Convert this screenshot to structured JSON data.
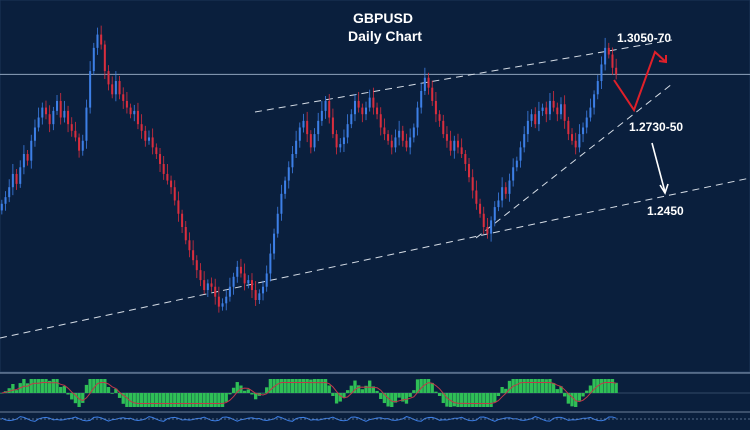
{
  "chart_data": {
    "type": "candlestick",
    "title": "GBPUSD",
    "subtitle": "Daily Chart",
    "y_range": [
      1.23,
      1.315
    ],
    "colors": {
      "background": "#0a1f3d",
      "bull_candle": "#3d7fe6",
      "bear_candle": "#d92e3e",
      "trendline": "#d6dde6",
      "forecast_up": "#e0202a",
      "forecast_down": "#ffffff",
      "histogram": "#2fbf56"
    },
    "annotations": [
      {
        "id": "resistance",
        "text": "1.3050-70",
        "price": 1.306
      },
      {
        "id": "support-1",
        "text": "1.2730-50",
        "price": 1.274
      },
      {
        "id": "support-2",
        "text": "1.2450",
        "price": 1.245
      }
    ],
    "horizontal_level": 1.298,
    "close_series": [
      1.259,
      1.261,
      1.264,
      1.268,
      1.265,
      1.27,
      1.274,
      1.272,
      1.278,
      1.282,
      1.285,
      1.288,
      1.286,
      1.283,
      1.287,
      1.29,
      1.285,
      1.287,
      1.283,
      1.281,
      1.279,
      1.275,
      1.278,
      1.288,
      1.299,
      1.306,
      1.31,
      1.307,
      1.299,
      1.295,
      1.292,
      1.296,
      1.292,
      1.29,
      1.288,
      1.286,
      1.287,
      1.283,
      1.281,
      1.278,
      1.279,
      1.276,
      1.274,
      1.271,
      1.268,
      1.266,
      1.264,
      1.26,
      1.256,
      1.252,
      1.248,
      1.245,
      1.242,
      1.239,
      1.236,
      1.233,
      1.235,
      1.234,
      1.231,
      1.228,
      1.229,
      1.231,
      1.234,
      1.237,
      1.24,
      1.238,
      1.235,
      1.236,
      1.233,
      1.23,
      1.232,
      1.234,
      1.238,
      1.244,
      1.25,
      1.256,
      1.262,
      1.266,
      1.27,
      1.274,
      1.278,
      1.282,
      1.284,
      1.28,
      1.276,
      1.28,
      1.284,
      1.287,
      1.29,
      1.285,
      1.28,
      1.276,
      1.277,
      1.279,
      1.283,
      1.286,
      1.29,
      1.288,
      1.286,
      1.288,
      1.291,
      1.288,
      1.286,
      1.282,
      1.28,
      1.278,
      1.276,
      1.279,
      1.281,
      1.278,
      1.276,
      1.279,
      1.282,
      1.288,
      1.293,
      1.297,
      1.294,
      1.29,
      1.286,
      1.284,
      1.28,
      1.278,
      1.275,
      1.278,
      1.276,
      1.274,
      1.271,
      1.267,
      1.263,
      1.259,
      1.256,
      1.252,
      1.25,
      1.254,
      1.258,
      1.26,
      1.264,
      1.262,
      1.266,
      1.27,
      1.272,
      1.276,
      1.28,
      1.284,
      1.286,
      1.283,
      1.287,
      1.288,
      1.286,
      1.29,
      1.288,
      1.286,
      1.289,
      1.284,
      1.28,
      1.278,
      1.276,
      1.28,
      1.282,
      1.285,
      1.288,
      1.292,
      1.296,
      1.301,
      1.306,
      1.304,
      1.3,
      1.298
    ]
  }
}
